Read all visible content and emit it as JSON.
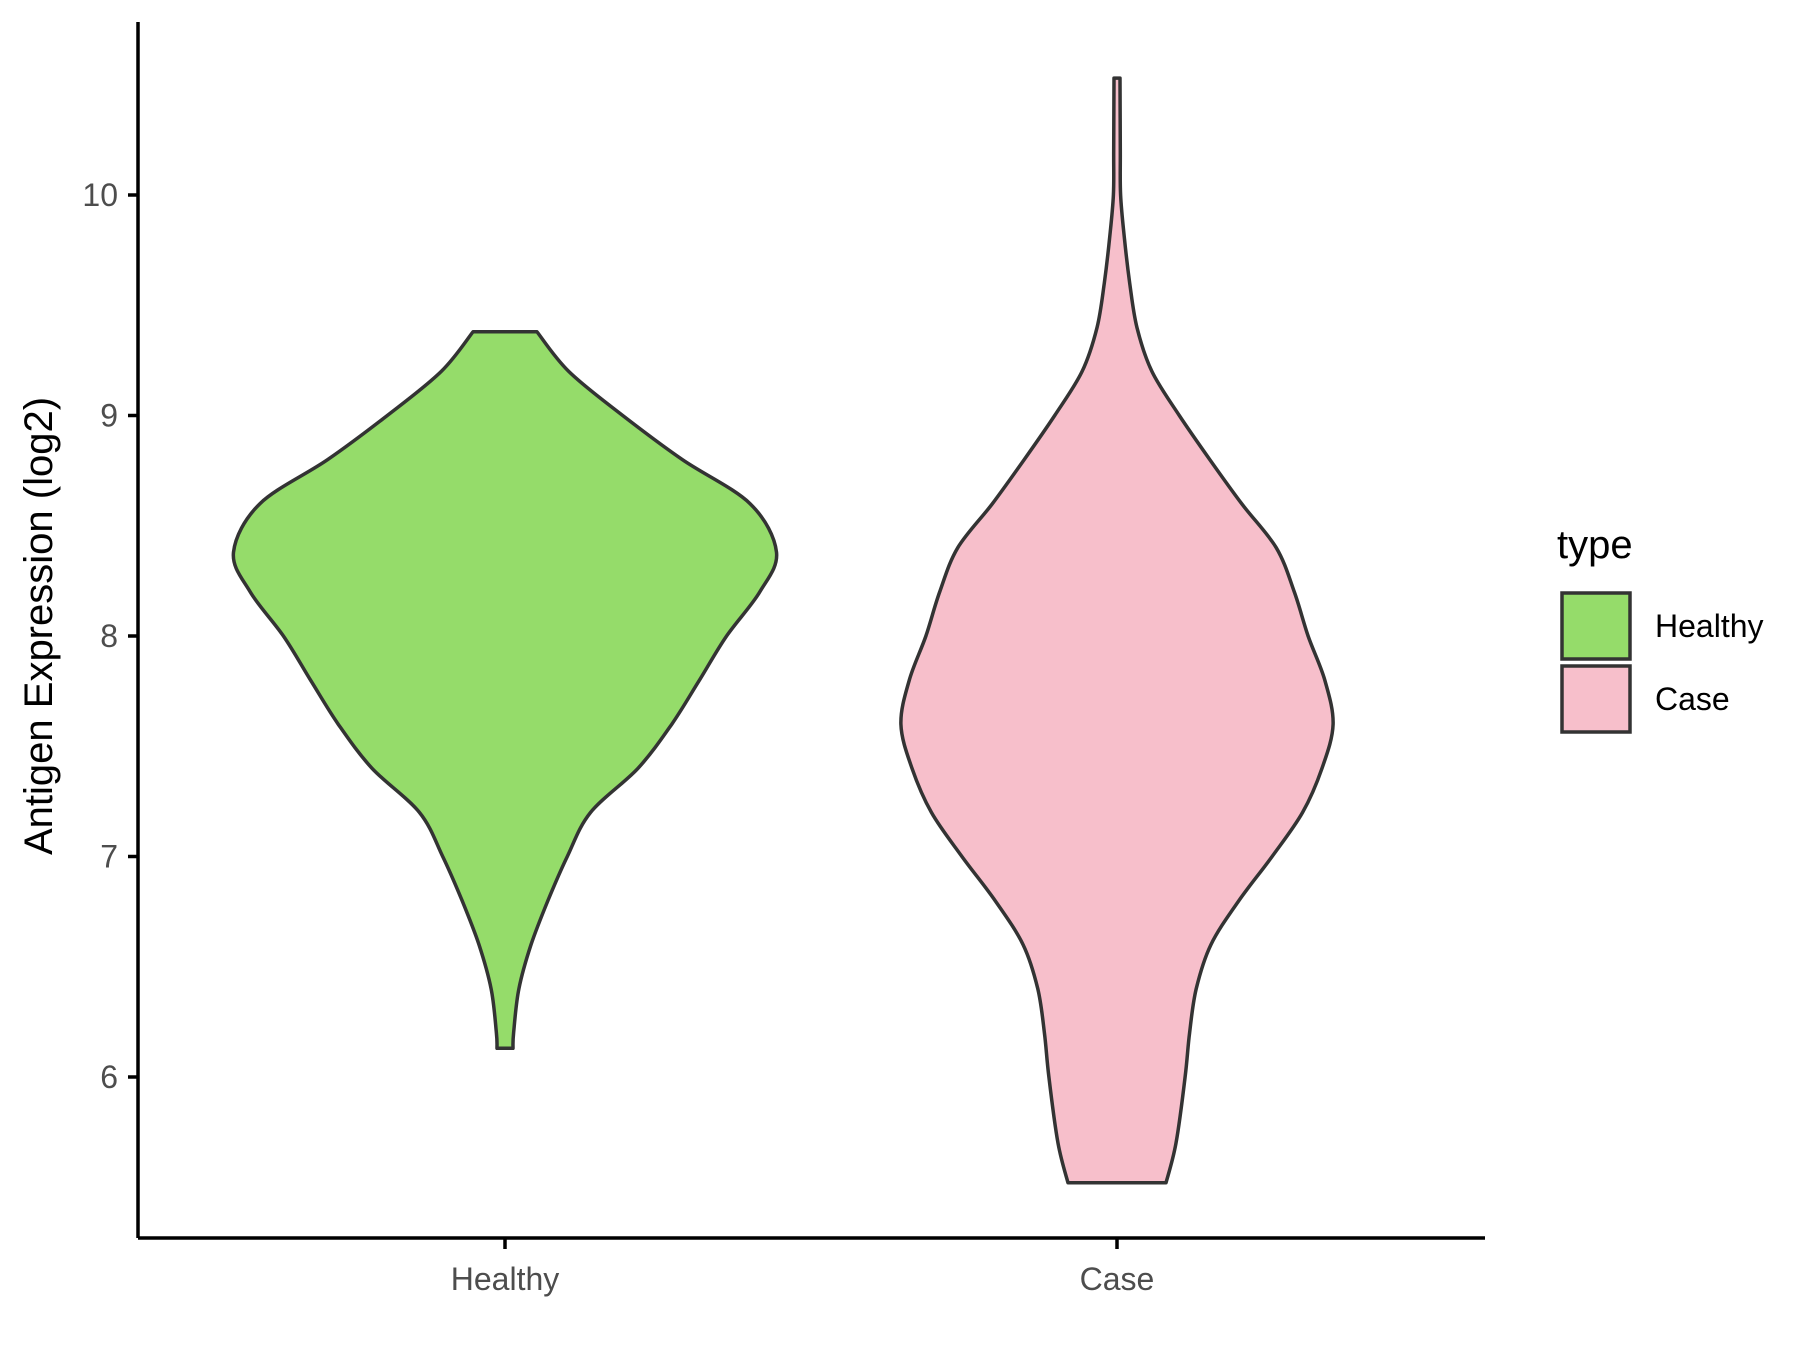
{
  "chart_data": {
    "type": "violin",
    "title": "",
    "xlabel": "",
    "ylabel": "Antigen Expression (log2)",
    "ylim": [
      5.3,
      10.8
    ],
    "yticks": [
      6,
      7,
      8,
      9,
      10
    ],
    "categories": [
      "Healthy",
      "Case"
    ],
    "grid": false,
    "legend": {
      "title": "type",
      "position": "right",
      "entries": [
        {
          "label": "Healthy",
          "color": "#95DC6A"
        },
        {
          "label": "Case",
          "color": "#F7BFCB"
        }
      ]
    },
    "series": [
      {
        "name": "Healthy",
        "color": "#95DC6A",
        "min": 6.13,
        "max": 9.38,
        "density_profile": [
          [
            6.13,
            0.029
          ],
          [
            6.2,
            0.031
          ],
          [
            6.4,
            0.05
          ],
          [
            6.6,
            0.094
          ],
          [
            6.8,
            0.155
          ],
          [
            7.0,
            0.225
          ],
          [
            7.2,
            0.309
          ],
          [
            7.4,
            0.48
          ],
          [
            7.6,
            0.602
          ],
          [
            7.8,
            0.702
          ],
          [
            8.0,
            0.8
          ],
          [
            8.2,
            0.92
          ],
          [
            8.38,
            0.98
          ],
          [
            8.6,
            0.885
          ],
          [
            8.8,
            0.64
          ],
          [
            9.0,
            0.425
          ],
          [
            9.2,
            0.23
          ],
          [
            9.38,
            0.115
          ]
        ]
      },
      {
        "name": "Case",
        "color": "#F7BFCB",
        "min": 5.52,
        "max": 10.53,
        "density_profile": [
          [
            5.52,
            0.177
          ],
          [
            5.7,
            0.213
          ],
          [
            6.0,
            0.246
          ],
          [
            6.2,
            0.262
          ],
          [
            6.4,
            0.286
          ],
          [
            6.6,
            0.339
          ],
          [
            6.8,
            0.44
          ],
          [
            7.0,
            0.56
          ],
          [
            7.2,
            0.67
          ],
          [
            7.4,
            0.74
          ],
          [
            7.6,
            0.78
          ],
          [
            7.8,
            0.75
          ],
          [
            8.0,
            0.69
          ],
          [
            8.2,
            0.64
          ],
          [
            8.4,
            0.575
          ],
          [
            8.6,
            0.45
          ],
          [
            8.8,
            0.335
          ],
          [
            9.0,
            0.225
          ],
          [
            9.2,
            0.126
          ],
          [
            9.4,
            0.072
          ],
          [
            9.6,
            0.046
          ],
          [
            9.8,
            0.027
          ],
          [
            10.0,
            0.013
          ],
          [
            10.2,
            0.012
          ],
          [
            10.53,
            0.011
          ]
        ]
      }
    ]
  }
}
